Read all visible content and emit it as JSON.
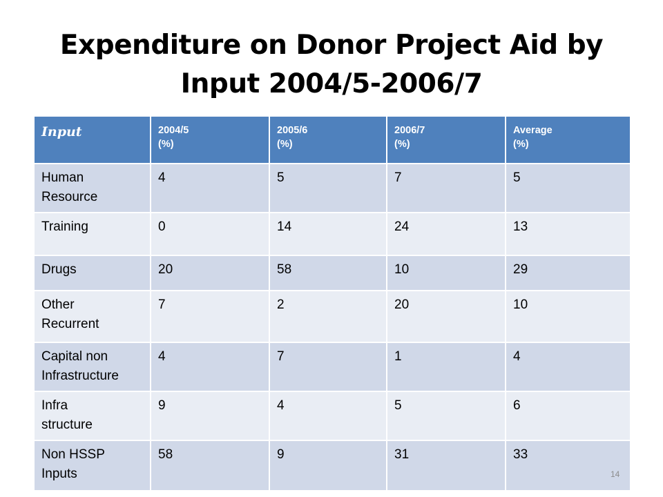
{
  "slide": {
    "title_line1": "Expenditure on Donor Project Aid by",
    "title_line2": "Input 2004/5-2006/7",
    "page_number": "14"
  },
  "table": {
    "headers": [
      {
        "line1": "Input",
        "line2": ""
      },
      {
        "line1": "2004/5",
        "line2": "(%)"
      },
      {
        "line1": "2005/6",
        "line2": "(%)"
      },
      {
        "line1": "2006/7",
        "line2": "(%)"
      },
      {
        "line1": "Average",
        "line2": "(%)"
      }
    ],
    "rows": [
      {
        "label_line1": "Human",
        "label_line2": "Resource",
        "values": [
          "4",
          "5",
          "7",
          "5"
        ]
      },
      {
        "label_line1": "Training",
        "label_line2": "",
        "values": [
          "0",
          "14",
          "24",
          "13"
        ]
      },
      {
        "label_line1": "Drugs",
        "label_line2": "",
        "values": [
          "20",
          "58",
          "10",
          "29"
        ]
      },
      {
        "label_line1": "Other",
        "label_line2": "Recurrent",
        "values": [
          "7",
          "2",
          "20",
          "10"
        ]
      },
      {
        "label_line1": "Capital non",
        "label_line2": "Infrastructure",
        "values": [
          "4",
          "7",
          "1",
          "4"
        ]
      },
      {
        "label_line1": "Infra",
        "label_line2": "structure",
        "values": [
          "9",
          "4",
          "5",
          "6"
        ]
      },
      {
        "label_line1": "Non HSSP",
        "label_line2": "Inputs",
        "values": [
          "58",
          "9",
          "31",
          "33"
        ]
      }
    ]
  }
}
